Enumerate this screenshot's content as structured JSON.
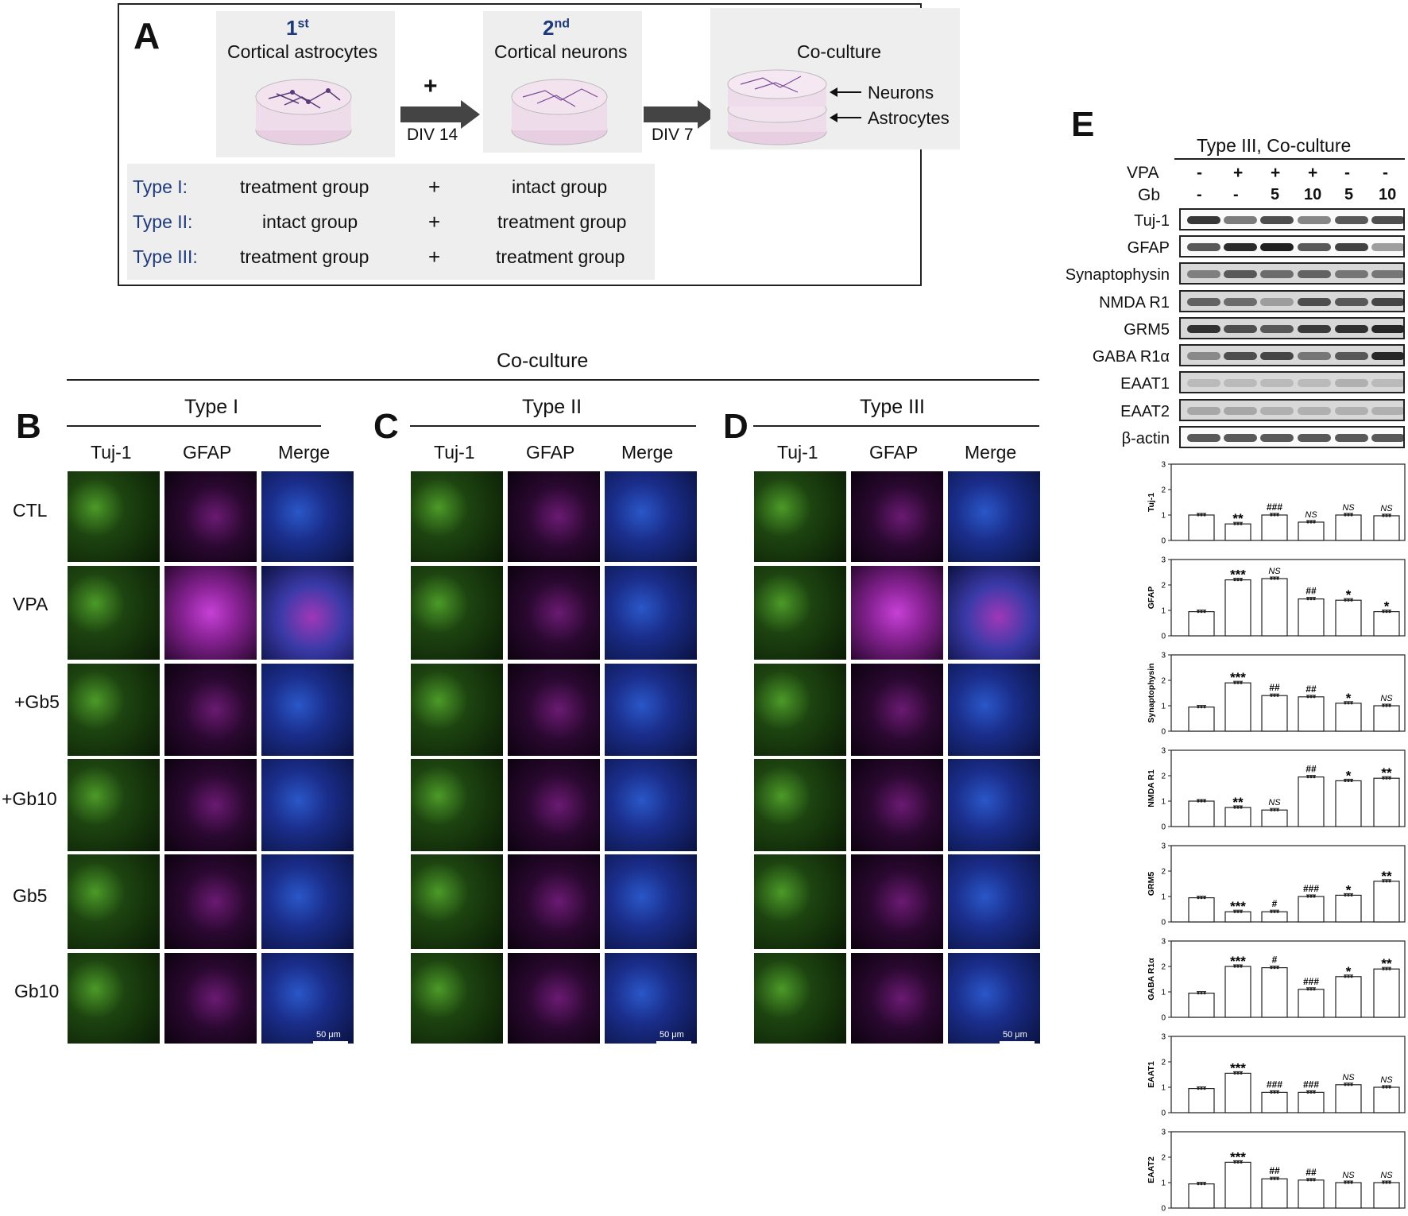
{
  "panel_a": {
    "letter": "A",
    "step1_num": "1",
    "step1_sup": "st",
    "step1_label": "Cortical astrocytes",
    "plus": "+",
    "div14": "DIV 14",
    "step2_num": "2",
    "step2_sup": "nd",
    "step2_label": "Cortical neurons",
    "div7": "DIV 7",
    "coculture_label": "Co-culture",
    "neurons_label": "Neurons",
    "astrocytes_label": "Astrocytes",
    "types": [
      {
        "name": "Type I:",
        "left": "treatment group",
        "plus": "+",
        "right": "intact group"
      },
      {
        "name": "Type II:",
        "left": "intact group",
        "plus": "+",
        "right": "treatment group"
      },
      {
        "name": "Type III:",
        "left": "treatment group",
        "plus": "+",
        "right": "treatment group"
      }
    ]
  },
  "coculture_title": "Co-culture",
  "panels": [
    {
      "letter": "B",
      "title": "Type I"
    },
    {
      "letter": "C",
      "title": "Type II"
    },
    {
      "letter": "D",
      "title": "Type III"
    }
  ],
  "channel_headers": [
    "Tuj-1",
    "GFAP",
    "Merge"
  ],
  "row_labels": [
    "CTL",
    "VPA",
    "+Gb5",
    "+Gb10",
    "Gb5",
    "Gb10"
  ],
  "scale_label": "50 μm",
  "panel_e": {
    "letter": "E",
    "title": "Type III, Co-culture",
    "vpa_label": "VPA",
    "gb_label": "Gb",
    "vpa_values": [
      "-",
      "+",
      "+",
      "+",
      "-",
      "-"
    ],
    "gb_values": [
      "-",
      "-",
      "5",
      "10",
      "5",
      "10"
    ],
    "blot_labels": [
      "Tuj-1",
      "GFAP",
      "Synaptophysin",
      "NMDA R1",
      "GRM5",
      "GABA R1α",
      "EAAT1",
      "EAAT2",
      "β-actin"
    ]
  },
  "colors": {
    "bar_fill": "#ffffff",
    "bar_stroke": "#222222",
    "type_label": "#1f3a7a"
  },
  "chart_data": [
    {
      "type": "bar",
      "ylabel": "Tuj-1",
      "ylim": [
        0,
        3
      ],
      "yticks": [
        "0",
        "1",
        "2",
        "3"
      ],
      "values": [
        1.0,
        0.65,
        1.0,
        0.72,
        1.0,
        0.97
      ],
      "annotations": [
        "",
        "**",
        "###",
        "NS",
        "NS",
        "NS"
      ]
    },
    {
      "type": "bar",
      "ylabel": "GFAP",
      "ylim": [
        0,
        3
      ],
      "yticks": [
        "0",
        "1",
        "2",
        "3"
      ],
      "values": [
        0.95,
        2.2,
        2.25,
        1.45,
        1.4,
        0.95
      ],
      "annotations": [
        "",
        "***",
        "NS",
        "##",
        "*",
        "*"
      ]
    },
    {
      "type": "bar",
      "ylabel": "Synaptophysin",
      "ylim": [
        0,
        3
      ],
      "yticks": [
        "0",
        "1",
        "2",
        "3"
      ],
      "values": [
        0.95,
        1.9,
        1.4,
        1.35,
        1.1,
        1.0
      ],
      "annotations": [
        "",
        "***",
        "##",
        "##",
        "*",
        "NS"
      ]
    },
    {
      "type": "bar",
      "ylabel": "NMDA R1",
      "ylim": [
        0,
        3
      ],
      "yticks": [
        "0",
        "1",
        "2",
        "3"
      ],
      "values": [
        1.0,
        0.75,
        0.65,
        1.95,
        1.8,
        1.9
      ],
      "annotations": [
        "",
        "**",
        "NS",
        "##",
        "*",
        "**"
      ]
    },
    {
      "type": "bar",
      "ylabel": "GRM5",
      "ylim": [
        0,
        3
      ],
      "yticks": [
        "0",
        "1",
        "2",
        "3"
      ],
      "values": [
        0.95,
        0.4,
        0.4,
        1.0,
        1.05,
        1.6
      ],
      "annotations": [
        "",
        "***",
        "#",
        "###",
        "*",
        "**"
      ]
    },
    {
      "type": "bar",
      "ylabel": "GABA R1α",
      "ylim": [
        0,
        3
      ],
      "yticks": [
        "0",
        "1",
        "2",
        "3"
      ],
      "values": [
        0.95,
        2.0,
        1.95,
        1.1,
        1.6,
        1.9
      ],
      "annotations": [
        "",
        "***",
        "#",
        "###",
        "*",
        "**"
      ]
    },
    {
      "type": "bar",
      "ylabel": "EAAT1",
      "ylim": [
        0,
        3
      ],
      "yticks": [
        "0",
        "1",
        "2",
        "3"
      ],
      "values": [
        0.95,
        1.55,
        0.8,
        0.8,
        1.1,
        1.0
      ],
      "annotations": [
        "",
        "***",
        "###",
        "###",
        "NS",
        "NS"
      ]
    },
    {
      "type": "bar",
      "ylabel": "EAAT2",
      "ylim": [
        0,
        3
      ],
      "yticks": [
        "0",
        "1",
        "2",
        "3"
      ],
      "values": [
        0.95,
        1.8,
        1.15,
        1.1,
        1.0,
        1.0
      ],
      "annotations": [
        "",
        "***",
        "##",
        "##",
        "NS",
        "NS"
      ]
    }
  ]
}
